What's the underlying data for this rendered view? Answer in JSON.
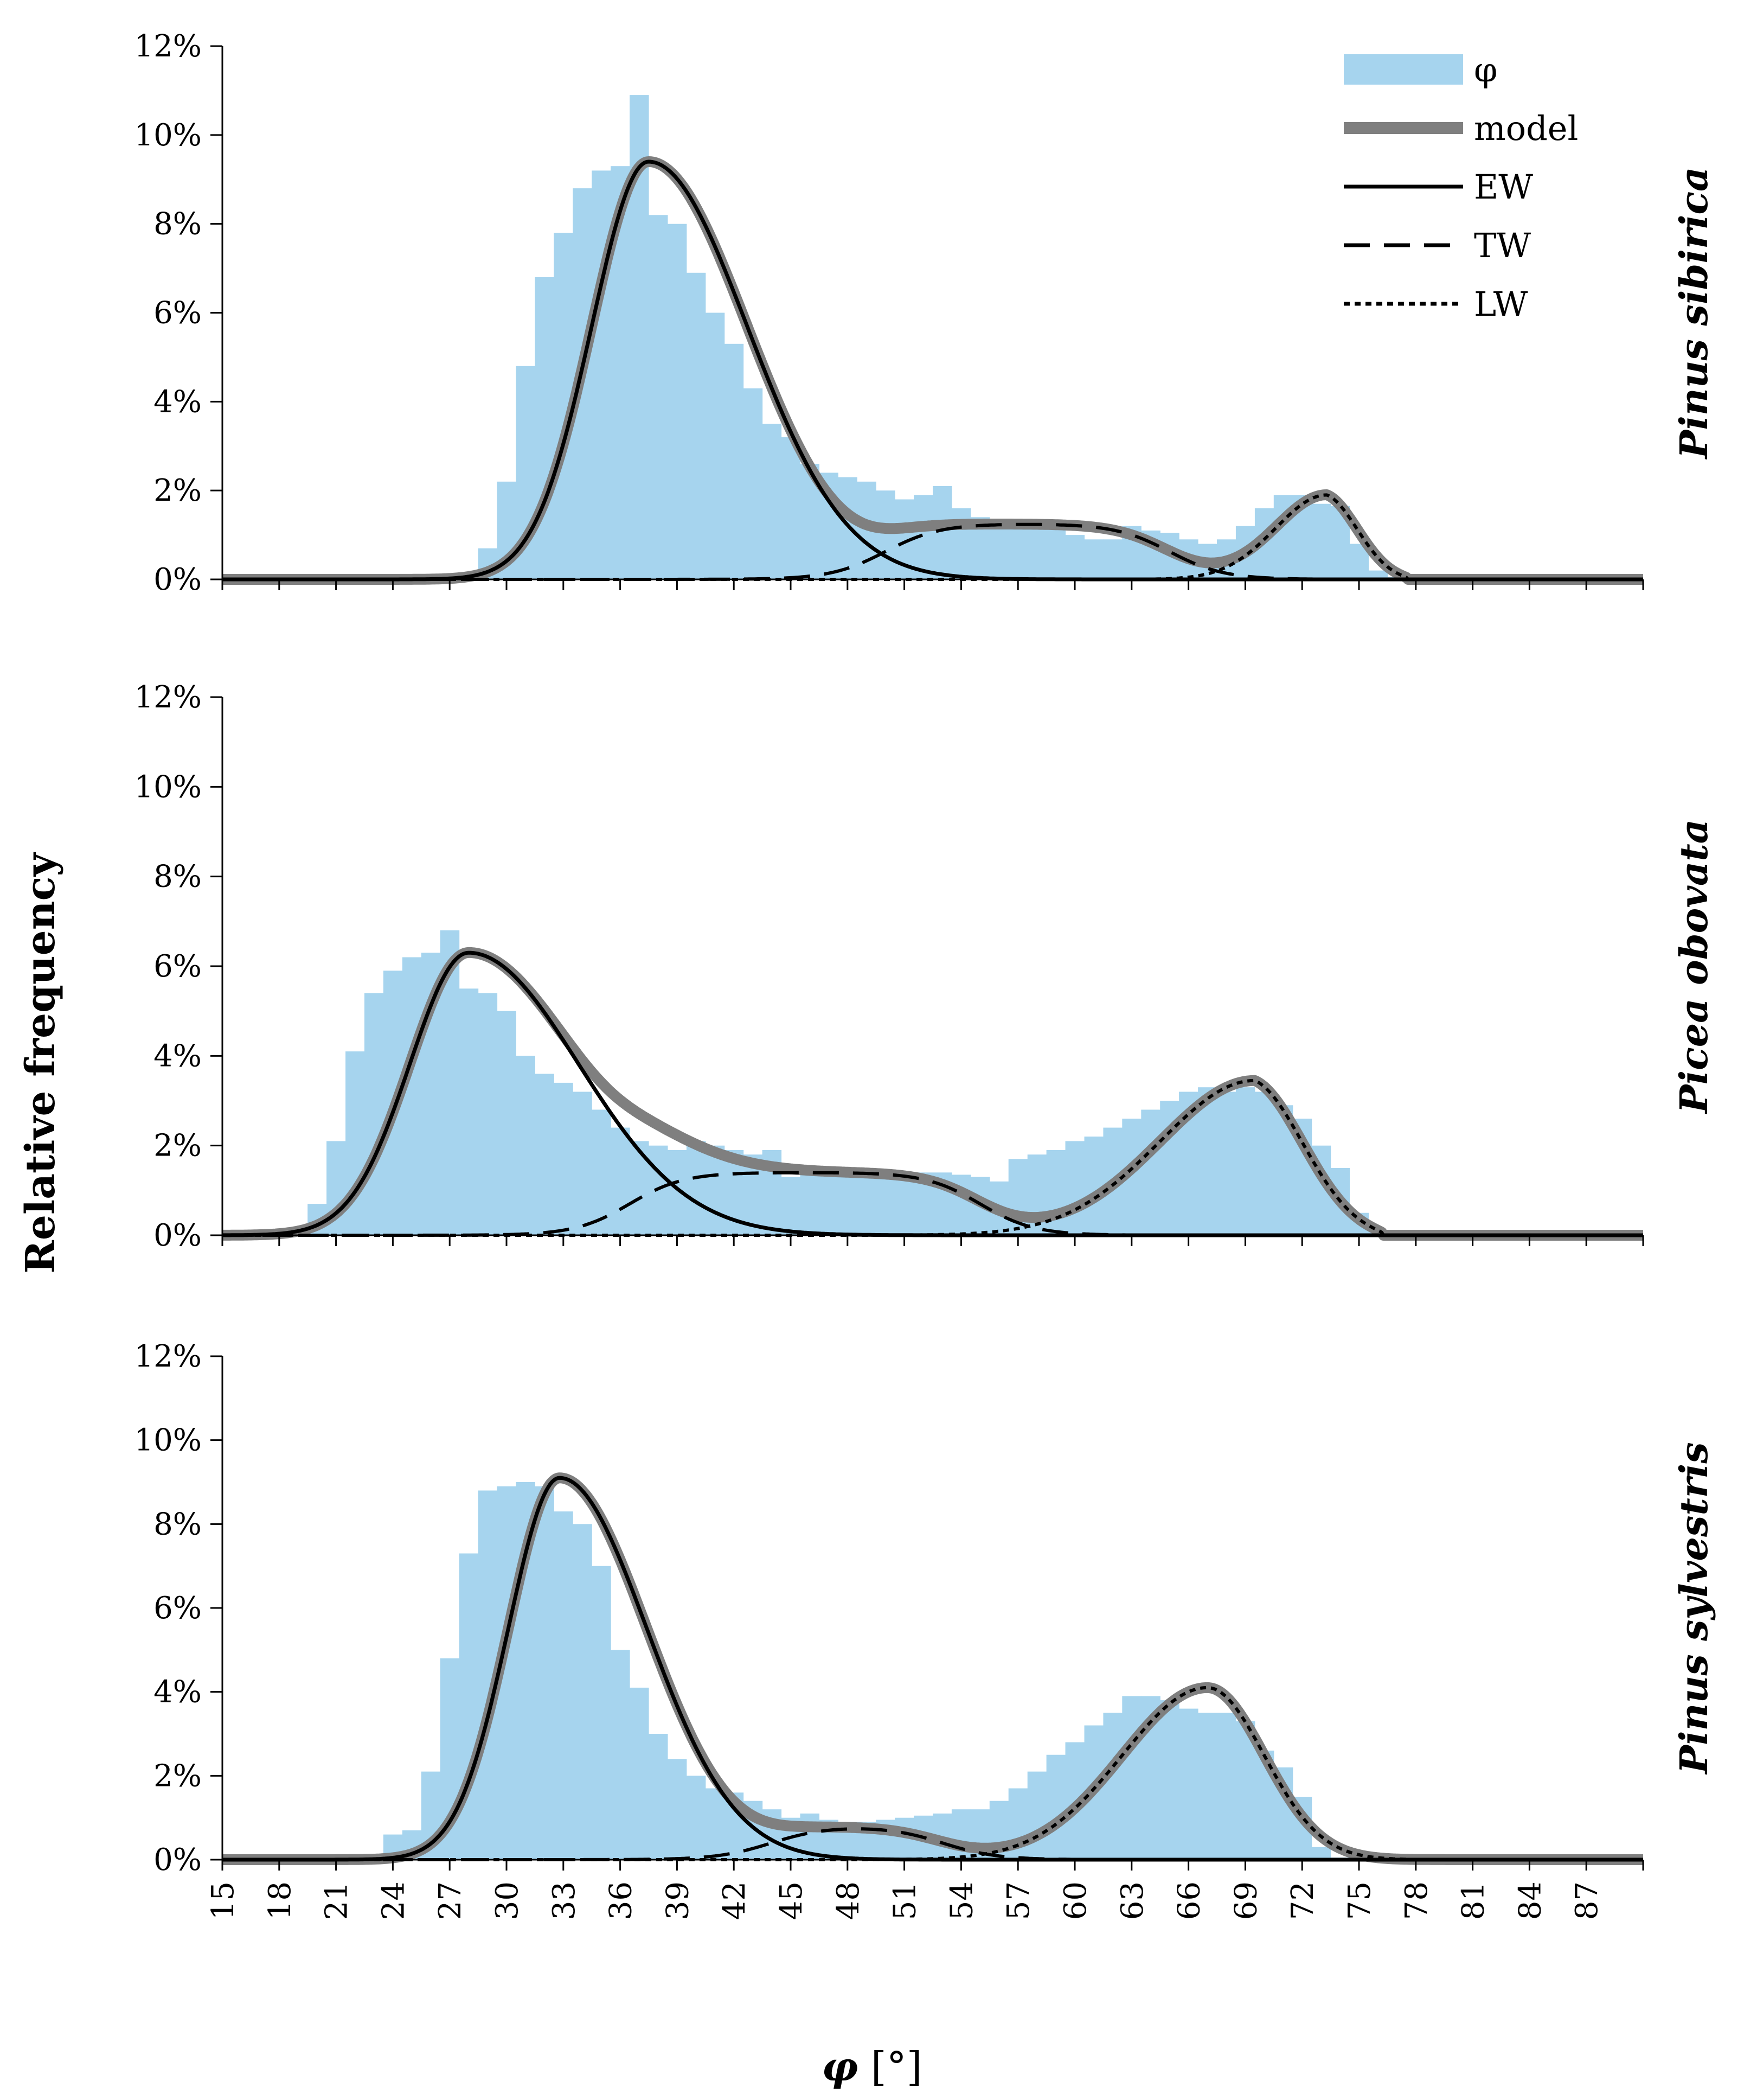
{
  "figure": {
    "y_axis_title": "Relative frequency",
    "x_axis_symbol": "φ",
    "x_axis_unit": " [°]"
  },
  "legend": {
    "hist_label": "φ",
    "model_label": "model",
    "ew_label": "EW",
    "tw_label": "TW",
    "lw_label": "LW"
  },
  "colors": {
    "histogram": "#a6d4ee",
    "model": "#7f7f7f",
    "components": "#000000"
  },
  "chart_data": [
    {
      "type": "bar",
      "species": "Pinus sibirica",
      "ylim": [
        0,
        12
      ],
      "xlim": [
        15,
        90
      ],
      "y_ticks": [
        "0%",
        "2%",
        "4%",
        "6%",
        "8%",
        "10%",
        "12%"
      ],
      "hist": {
        "x": [
          28,
          29,
          30,
          31,
          32,
          33,
          34,
          35,
          36,
          37,
          38,
          39,
          40,
          41,
          42,
          43,
          44,
          45,
          46,
          47,
          48,
          49,
          50,
          51,
          52,
          53,
          54,
          55,
          56,
          57,
          58,
          59,
          60,
          61,
          62,
          63,
          64,
          65,
          66,
          67,
          68,
          69,
          70,
          71,
          72,
          73,
          74,
          75,
          76,
          77
        ],
        "values": [
          0.05,
          0.7,
          2.2,
          4.8,
          6.8,
          7.8,
          8.8,
          9.2,
          9.3,
          10.9,
          8.2,
          8.0,
          6.9,
          6.0,
          5.3,
          4.3,
          3.5,
          3.2,
          2.6,
          2.4,
          2.3,
          2.2,
          2.0,
          1.8,
          1.9,
          2.1,
          1.6,
          1.4,
          1.3,
          1.35,
          1.3,
          1.2,
          1.0,
          0.9,
          0.9,
          1.2,
          1.1,
          1.05,
          0.9,
          0.8,
          0.9,
          1.2,
          1.6,
          1.9,
          1.9,
          1.7,
          1.65,
          0.8,
          0.2,
          0.05
        ]
      },
      "components": {
        "EW": {
          "mu": 37.5,
          "sd_left": 3.0,
          "sd_right": 5.2,
          "peak": 9.4
        },
        "TW": {
          "lo": 47,
          "hi": 68,
          "level": 1.25,
          "ramp": 2.3
        },
        "LW": {
          "mu": 73.3,
          "sd_left": 2.7,
          "sd_right": 1.9,
          "peak": 1.9,
          "cut": 77.6
        }
      }
    },
    {
      "type": "bar",
      "species": "Picea obovata",
      "ylim": [
        0,
        12
      ],
      "xlim": [
        15,
        90
      ],
      "y_ticks": [
        "0%",
        "2%",
        "4%",
        "6%",
        "8%",
        "10%",
        "12%"
      ],
      "hist": {
        "x": [
          19,
          20,
          21,
          22,
          23,
          24,
          25,
          26,
          27,
          28,
          29,
          30,
          31,
          32,
          33,
          34,
          35,
          36,
          37,
          38,
          39,
          40,
          41,
          42,
          43,
          44,
          45,
          46,
          47,
          48,
          49,
          50,
          51,
          52,
          53,
          54,
          55,
          56,
          57,
          58,
          59,
          60,
          61,
          62,
          63,
          64,
          65,
          66,
          67,
          68,
          69,
          70,
          71,
          72,
          73,
          74,
          75,
          76
        ],
        "values": [
          0.1,
          0.7,
          2.1,
          4.1,
          5.4,
          5.9,
          6.2,
          6.3,
          6.8,
          5.5,
          5.4,
          5.0,
          4.0,
          3.6,
          3.4,
          3.2,
          2.8,
          2.4,
          2.1,
          2.0,
          1.9,
          2.1,
          2.0,
          1.9,
          1.8,
          1.9,
          1.3,
          1.4,
          1.4,
          1.5,
          1.4,
          1.3,
          1.35,
          1.4,
          1.4,
          1.35,
          1.3,
          1.2,
          1.7,
          1.8,
          1.9,
          2.1,
          2.2,
          2.4,
          2.6,
          2.8,
          3.0,
          3.2,
          3.3,
          3.2,
          3.3,
          3.2,
          2.9,
          2.6,
          2.0,
          1.5,
          0.5,
          0.1
        ]
      },
      "components": {
        "EW": {
          "mu": 28.0,
          "sd_left": 3.1,
          "sd_right": 5.8,
          "peak": 6.3
        },
        "TW": {
          "lo": 33.5,
          "hi": 58,
          "level": 1.4,
          "ramp": 2.3
        },
        "LW": {
          "mu": 69.5,
          "sd_left": 5.0,
          "sd_right": 3.0,
          "peak": 3.45,
          "cut": 76.3
        }
      }
    },
    {
      "type": "bar",
      "species": "Pinus sylvestris",
      "ylim": [
        0,
        12
      ],
      "xlim": [
        15,
        90
      ],
      "y_ticks": [
        "0%",
        "2%",
        "4%",
        "6%",
        "8%",
        "10%",
        "12%"
      ],
      "hist": {
        "x": [
          23,
          24,
          25,
          26,
          27,
          28,
          29,
          30,
          31,
          32,
          33,
          34,
          35,
          36,
          37,
          38,
          39,
          40,
          41,
          42,
          43,
          44,
          45,
          46,
          47,
          48,
          49,
          50,
          51,
          52,
          53,
          54,
          55,
          56,
          57,
          58,
          59,
          60,
          61,
          62,
          63,
          64,
          65,
          66,
          67,
          68,
          69,
          70,
          71,
          72,
          73,
          74
        ],
        "values": [
          0.1,
          0.6,
          0.7,
          2.1,
          4.8,
          7.3,
          8.8,
          8.9,
          9.0,
          8.9,
          8.3,
          8.0,
          7.0,
          5.0,
          4.1,
          3.0,
          2.4,
          2.0,
          1.7,
          1.6,
          1.4,
          1.2,
          1.0,
          1.1,
          0.95,
          0.9,
          0.9,
          0.95,
          1.0,
          1.05,
          1.1,
          1.2,
          1.2,
          1.4,
          1.7,
          2.1,
          2.5,
          2.8,
          3.2,
          3.5,
          3.9,
          3.9,
          3.8,
          3.6,
          3.5,
          3.5,
          3.3,
          2.6,
          2.2,
          1.5,
          0.3,
          0.05
        ]
      },
      "components": {
        "EW": {
          "mu": 32.8,
          "sd_left": 2.7,
          "sd_right": 4.6,
          "peak": 9.1
        },
        "TW": {
          "lo": 41,
          "hi": 56,
          "level": 0.8,
          "ramp": 2.3
        },
        "LW": {
          "mu": 67.0,
          "sd_left": 4.5,
          "sd_right": 3.0,
          "peak": 4.1
        }
      }
    }
  ],
  "x_ticks": [
    "15",
    "18",
    "21",
    "24",
    "27",
    "30",
    "33",
    "36",
    "39",
    "42",
    "45",
    "48",
    "51",
    "54",
    "57",
    "60",
    "63",
    "66",
    "69",
    "72",
    "75",
    "78",
    "81",
    "84",
    "87"
  ]
}
